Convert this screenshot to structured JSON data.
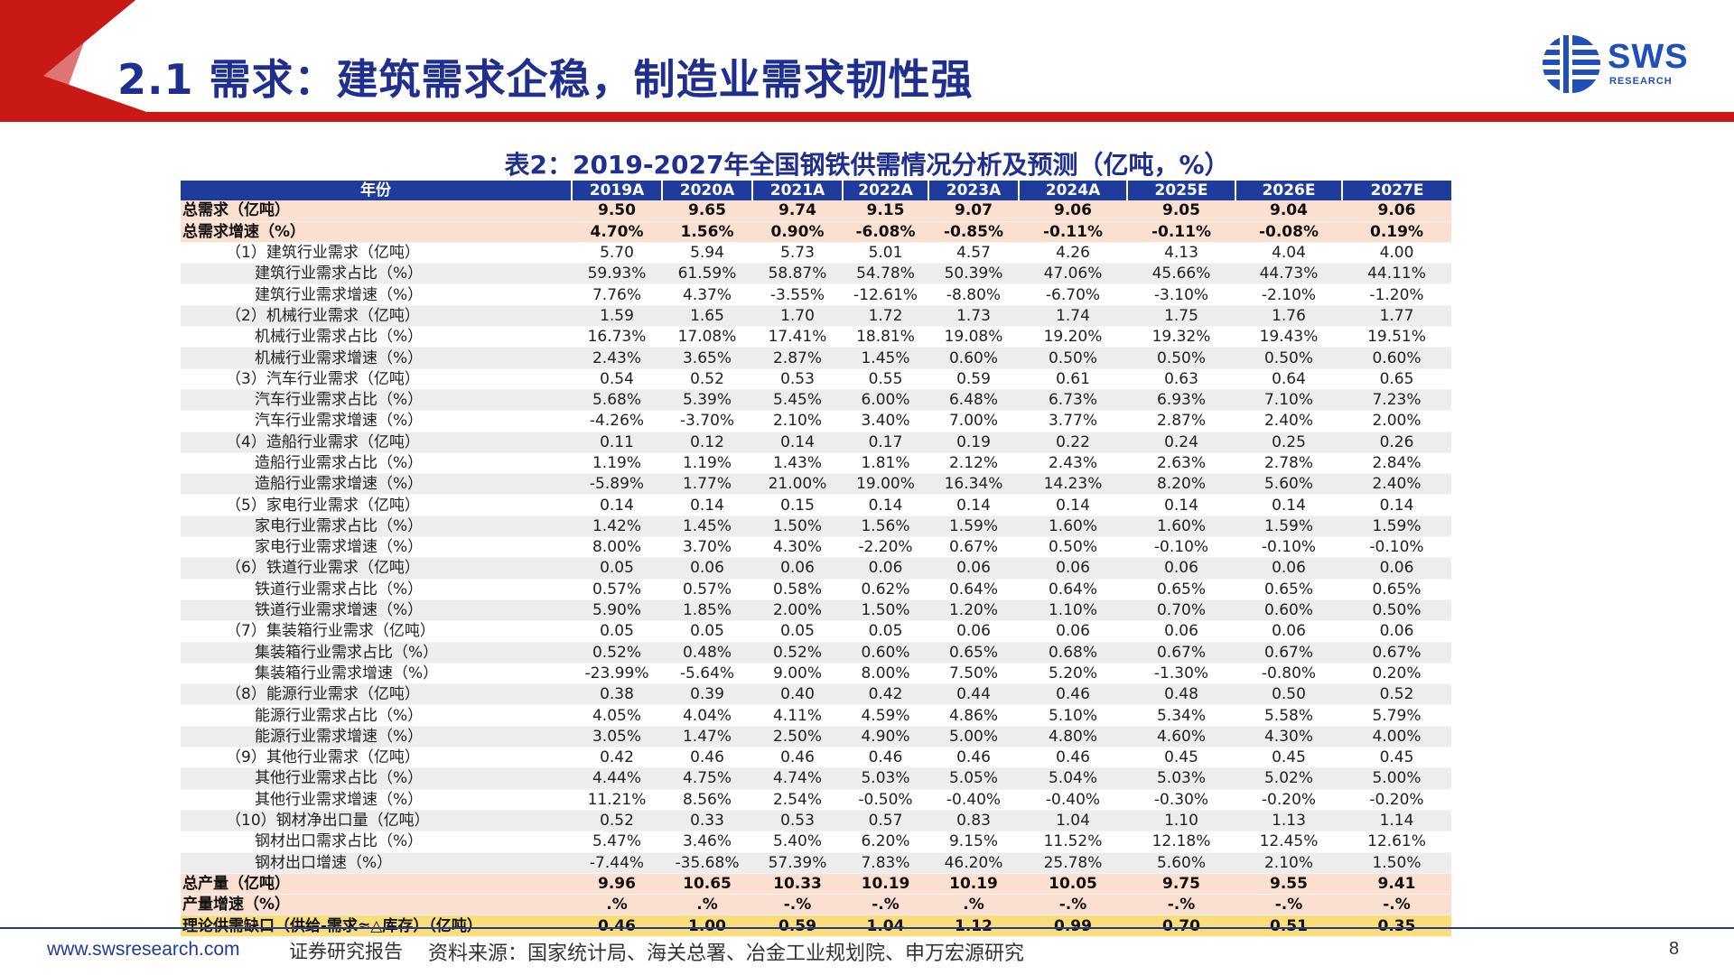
{
  "header": {
    "title": "2.1 需求：建筑需求企稳，制造业需求韧性强",
    "logo_text": "SWS",
    "logo_sub": "RESEARCH",
    "accent_color": "#c81914",
    "brand_color": "#1f3c9c"
  },
  "table": {
    "title": "表2：2019-2027年全国钢铁供需情况分析及预测（亿吨，%）",
    "header_label": "年份",
    "years": [
      "2019A",
      "2020A",
      "2021A",
      "2022A",
      "2023A",
      "2024A",
      "2025E",
      "2026E",
      "2027E"
    ],
    "rows": [
      {
        "label": "总需求（亿吨）",
        "style": "hl",
        "indent": 0,
        "values": [
          "9.50",
          "9.65",
          "9.74",
          "9.15",
          "9.07",
          "9.06",
          "9.05",
          "9.04",
          "9.06"
        ]
      },
      {
        "label": "总需求增速（%）",
        "style": "hl",
        "indent": 0,
        "values": [
          "4.70%",
          "1.56%",
          "0.90%",
          "-6.08%",
          "-0.85%",
          "-0.11%",
          "-0.11%",
          "-0.08%",
          "0.19%"
        ]
      },
      {
        "label": "（1）建筑行业需求（亿吨）",
        "style": "white",
        "indent": 1,
        "values": [
          "5.70",
          "5.94",
          "5.73",
          "5.01",
          "4.57",
          "4.26",
          "4.13",
          "4.04",
          "4.00"
        ]
      },
      {
        "label": "建筑行业需求占比（%）",
        "style": "zebra",
        "indent": 2,
        "values": [
          "59.93%",
          "61.59%",
          "58.87%",
          "54.78%",
          "50.39%",
          "47.06%",
          "45.66%",
          "44.73%",
          "44.11%"
        ]
      },
      {
        "label": "建筑行业需求增速（%）",
        "style": "white",
        "indent": 2,
        "values": [
          "7.76%",
          "4.37%",
          "-3.55%",
          "-12.61%",
          "-8.80%",
          "-6.70%",
          "-3.10%",
          "-2.10%",
          "-1.20%"
        ]
      },
      {
        "label": "（2）机械行业需求（亿吨）",
        "style": "zebra",
        "indent": 1,
        "values": [
          "1.59",
          "1.65",
          "1.70",
          "1.72",
          "1.73",
          "1.74",
          "1.75",
          "1.76",
          "1.77"
        ]
      },
      {
        "label": "机械行业需求占比（%）",
        "style": "white",
        "indent": 2,
        "values": [
          "16.73%",
          "17.08%",
          "17.41%",
          "18.81%",
          "19.08%",
          "19.20%",
          "19.32%",
          "19.43%",
          "19.51%"
        ]
      },
      {
        "label": "机械行业需求增速（%）",
        "style": "zebra",
        "indent": 2,
        "values": [
          "2.43%",
          "3.65%",
          "2.87%",
          "1.45%",
          "0.60%",
          "0.50%",
          "0.50%",
          "0.50%",
          "0.60%"
        ]
      },
      {
        "label": "（3）汽车行业需求（亿吨）",
        "style": "white",
        "indent": 1,
        "values": [
          "0.54",
          "0.52",
          "0.53",
          "0.55",
          "0.59",
          "0.61",
          "0.63",
          "0.64",
          "0.65"
        ]
      },
      {
        "label": "汽车行业需求占比（%）",
        "style": "zebra",
        "indent": 2,
        "values": [
          "5.68%",
          "5.39%",
          "5.45%",
          "6.00%",
          "6.48%",
          "6.73%",
          "6.93%",
          "7.10%",
          "7.23%"
        ]
      },
      {
        "label": "汽车行业需求增速（%）",
        "style": "white",
        "indent": 2,
        "values": [
          "-4.26%",
          "-3.70%",
          "2.10%",
          "3.40%",
          "7.00%",
          "3.77%",
          "2.87%",
          "2.40%",
          "2.00%"
        ]
      },
      {
        "label": "（4）造船行业需求（亿吨）",
        "style": "zebra",
        "indent": 1,
        "values": [
          "0.11",
          "0.12",
          "0.14",
          "0.17",
          "0.19",
          "0.22",
          "0.24",
          "0.25",
          "0.26"
        ]
      },
      {
        "label": "造船行业需求占比（%）",
        "style": "white",
        "indent": 2,
        "values": [
          "1.19%",
          "1.19%",
          "1.43%",
          "1.81%",
          "2.12%",
          "2.43%",
          "2.63%",
          "2.78%",
          "2.84%"
        ]
      },
      {
        "label": "造船行业需求增速（%）",
        "style": "zebra",
        "indent": 2,
        "values": [
          "-5.89%",
          "1.77%",
          "21.00%",
          "19.00%",
          "16.34%",
          "14.23%",
          "8.20%",
          "5.60%",
          "2.40%"
        ]
      },
      {
        "label": "（5）家电行业需求（亿吨）",
        "style": "white",
        "indent": 1,
        "values": [
          "0.14",
          "0.14",
          "0.15",
          "0.14",
          "0.14",
          "0.14",
          "0.14",
          "0.14",
          "0.14"
        ]
      },
      {
        "label": "家电行业需求占比（%）",
        "style": "zebra",
        "indent": 2,
        "values": [
          "1.42%",
          "1.45%",
          "1.50%",
          "1.56%",
          "1.59%",
          "1.60%",
          "1.60%",
          "1.59%",
          "1.59%"
        ]
      },
      {
        "label": "家电行业需求增速（%）",
        "style": "white",
        "indent": 2,
        "values": [
          "8.00%",
          "3.70%",
          "4.30%",
          "-2.20%",
          "0.67%",
          "0.50%",
          "-0.10%",
          "-0.10%",
          "-0.10%"
        ]
      },
      {
        "label": "（6）铁道行业需求（亿吨）",
        "style": "zebra",
        "indent": 1,
        "values": [
          "0.05",
          "0.06",
          "0.06",
          "0.06",
          "0.06",
          "0.06",
          "0.06",
          "0.06",
          "0.06"
        ]
      },
      {
        "label": "铁道行业需求占比（%）",
        "style": "white",
        "indent": 2,
        "values": [
          "0.57%",
          "0.57%",
          "0.58%",
          "0.62%",
          "0.64%",
          "0.64%",
          "0.65%",
          "0.65%",
          "0.65%"
        ]
      },
      {
        "label": "铁道行业需求增速（%）",
        "style": "zebra",
        "indent": 2,
        "values": [
          "5.90%",
          "1.85%",
          "2.00%",
          "1.50%",
          "1.20%",
          "1.10%",
          "0.70%",
          "0.60%",
          "0.50%"
        ]
      },
      {
        "label": "（7）集装箱行业需求（亿吨）",
        "style": "white",
        "indent": 1,
        "values": [
          "0.05",
          "0.05",
          "0.05",
          "0.05",
          "0.06",
          "0.06",
          "0.06",
          "0.06",
          "0.06"
        ]
      },
      {
        "label": "集装箱行业需求占比（%）",
        "style": "zebra",
        "indent": 2,
        "values": [
          "0.52%",
          "0.48%",
          "0.52%",
          "0.60%",
          "0.65%",
          "0.68%",
          "0.67%",
          "0.67%",
          "0.67%"
        ]
      },
      {
        "label": "集装箱行业需求增速（%）",
        "style": "white",
        "indent": 2,
        "values": [
          "-23.99%",
          "-5.64%",
          "9.00%",
          "8.00%",
          "7.50%",
          "5.20%",
          "-1.30%",
          "-0.80%",
          "0.20%"
        ]
      },
      {
        "label": "（8）能源行业需求（亿吨）",
        "style": "zebra",
        "indent": 1,
        "values": [
          "0.38",
          "0.39",
          "0.40",
          "0.42",
          "0.44",
          "0.46",
          "0.48",
          "0.50",
          "0.52"
        ]
      },
      {
        "label": "能源行业需求占比（%）",
        "style": "white",
        "indent": 2,
        "values": [
          "4.05%",
          "4.04%",
          "4.11%",
          "4.59%",
          "4.86%",
          "5.10%",
          "5.34%",
          "5.58%",
          "5.79%"
        ]
      },
      {
        "label": "能源行业需求增速（%）",
        "style": "zebra",
        "indent": 2,
        "values": [
          "3.05%",
          "1.47%",
          "2.50%",
          "4.90%",
          "5.00%",
          "4.80%",
          "4.60%",
          "4.30%",
          "4.00%"
        ]
      },
      {
        "label": "（9）其他行业需求（亿吨）",
        "style": "white",
        "indent": 1,
        "values": [
          "0.42",
          "0.46",
          "0.46",
          "0.46",
          "0.46",
          "0.46",
          "0.45",
          "0.45",
          "0.45"
        ]
      },
      {
        "label": "其他行业需求占比（%）",
        "style": "zebra",
        "indent": 2,
        "values": [
          "4.44%",
          "4.75%",
          "4.74%",
          "5.03%",
          "5.05%",
          "5.04%",
          "5.03%",
          "5.02%",
          "5.00%"
        ]
      },
      {
        "label": "其他行业需求增速（%）",
        "style": "white",
        "indent": 2,
        "values": [
          "11.21%",
          "8.56%",
          "2.54%",
          "-0.50%",
          "-0.40%",
          "-0.40%",
          "-0.30%",
          "-0.20%",
          "-0.20%"
        ]
      },
      {
        "label": "（10）钢材净出口量（亿吨）",
        "style": "zebra",
        "indent": 1,
        "values": [
          "0.52",
          "0.33",
          "0.53",
          "0.57",
          "0.83",
          "1.04",
          "1.10",
          "1.13",
          "1.14"
        ]
      },
      {
        "label": "钢材出口需求占比（%）",
        "style": "white",
        "indent": 2,
        "values": [
          "5.47%",
          "3.46%",
          "5.40%",
          "6.20%",
          "9.15%",
          "11.52%",
          "12.18%",
          "12.45%",
          "12.61%"
        ]
      },
      {
        "label": "钢材出口增速（%）",
        "style": "zebra",
        "indent": 2,
        "values": [
          "-7.44%",
          "-35.68%",
          "57.39%",
          "7.83%",
          "46.20%",
          "25.78%",
          "5.60%",
          "2.10%",
          "1.50%"
        ]
      },
      {
        "label": "总产量（亿吨）",
        "style": "hl",
        "indent": 0,
        "values": [
          "9.96",
          "10.65",
          "10.33",
          "10.19",
          "10.19",
          "10.05",
          "9.75",
          "9.55",
          "9.41"
        ]
      },
      {
        "label": "产量增速（%）",
        "style": "hl",
        "indent": 0,
        "values": [
          ".%",
          ".%",
          "-.%",
          "-.%",
          ".%",
          "-.%",
          "-.%",
          "-.%",
          "-.%"
        ]
      },
      {
        "label": "理论供需缺口（供给-需求≈△库存）（亿吨）",
        "style": "gap",
        "indent": 0,
        "values": [
          "0.46",
          "1.00",
          "0.59",
          "1.04",
          "1.12",
          "0.99",
          "0.70",
          "0.51",
          "0.35"
        ]
      }
    ]
  },
  "footer": {
    "url": "www.swsresearch.com",
    "report_type": "证券研究报告",
    "source": "资料来源：国家统计局、海关总署、冶金工业规划院、申万宏源研究",
    "page_number": "8"
  }
}
